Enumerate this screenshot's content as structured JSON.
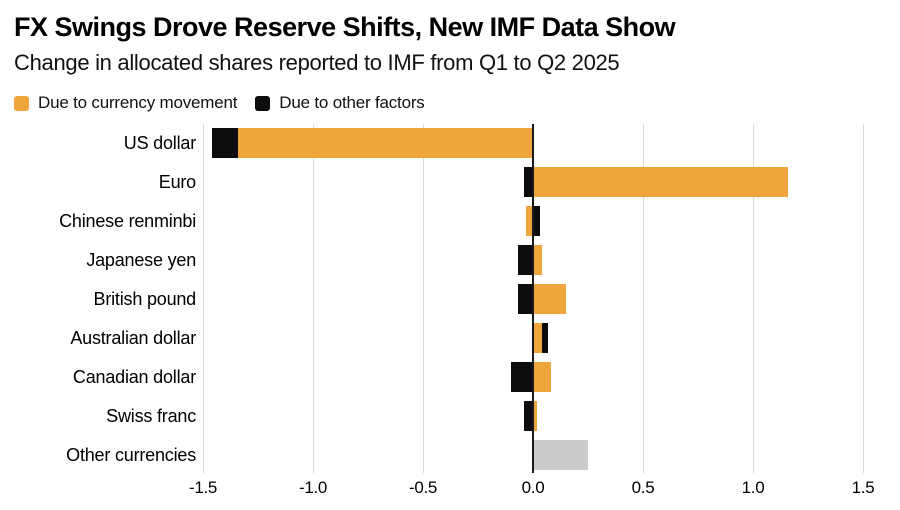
{
  "title": "FX Swings Drove Reserve Shifts, New IMF Data Show",
  "subtitle": "Change in allocated shares reported to IMF from Q1 to Q2 2025",
  "legend": [
    {
      "label": "Due to currency movement",
      "series": "currency",
      "color": "#F0A43C"
    },
    {
      "label": "Due to other factors",
      "series": "other",
      "color": "#0D0D0D"
    }
  ],
  "colors": {
    "currency": "#F0A43C",
    "other": "#0D0D0D",
    "other_currencies": "#CBCBCB",
    "gridline": "#D9D9D9",
    "zero_line": "#1A1A1A"
  },
  "chart_data": {
    "type": "bar",
    "orientation": "horizontal",
    "stacked": true,
    "unit": "percentage points",
    "xlim": [
      -1.5,
      1.5
    ],
    "grid": "vertical",
    "legend_position": "top",
    "x_ticks": [
      {
        "label": "-1.5",
        "value": -1.5
      },
      {
        "label": "-1.0",
        "value": -1.0
      },
      {
        "label": "-0.5",
        "value": -0.5
      },
      {
        "label": "0.0",
        "value": 0.0
      },
      {
        "label": "0.5",
        "value": 0.5
      },
      {
        "label": "1.0",
        "value": 1.0
      },
      {
        "label": "1.5",
        "value": 1.5
      }
    ],
    "categories": [
      "US dollar",
      "Euro",
      "Chinese renminbi",
      "Japanese yen",
      "British pound",
      "Australian dollar",
      "Canadian dollar",
      "Swiss franc",
      "Other currencies"
    ],
    "rows": [
      {
        "category": "US dollar",
        "segments": [
          {
            "series": "currency",
            "value": -1.34
          },
          {
            "series": "other",
            "value": -0.12
          }
        ]
      },
      {
        "category": "Euro",
        "segments": [
          {
            "series": "currency",
            "value": 1.16
          },
          {
            "series": "other",
            "value": -0.04
          }
        ]
      },
      {
        "category": "Chinese renminbi",
        "segments": [
          {
            "series": "currency",
            "value": -0.03
          },
          {
            "series": "other",
            "value": 0.03
          }
        ]
      },
      {
        "category": "Japanese yen",
        "segments": [
          {
            "series": "currency",
            "value": 0.04
          },
          {
            "series": "other",
            "value": -0.07
          }
        ]
      },
      {
        "category": "British pound",
        "segments": [
          {
            "series": "currency",
            "value": 0.15
          },
          {
            "series": "other",
            "value": -0.07
          }
        ]
      },
      {
        "category": "Australian dollar",
        "segments": [
          {
            "series": "currency",
            "value": 0.04
          },
          {
            "series": "other",
            "value": 0.03
          }
        ]
      },
      {
        "category": "Canadian dollar",
        "segments": [
          {
            "series": "currency",
            "value": 0.08
          },
          {
            "series": "other",
            "value": -0.1
          }
        ]
      },
      {
        "category": "Swiss franc",
        "segments": [
          {
            "series": "currency",
            "value": 0.02
          },
          {
            "series": "other",
            "value": -0.04
          }
        ]
      },
      {
        "category": "Other currencies",
        "segments": [
          {
            "series": "other_currencies",
            "value": 0.25
          }
        ]
      }
    ]
  }
}
